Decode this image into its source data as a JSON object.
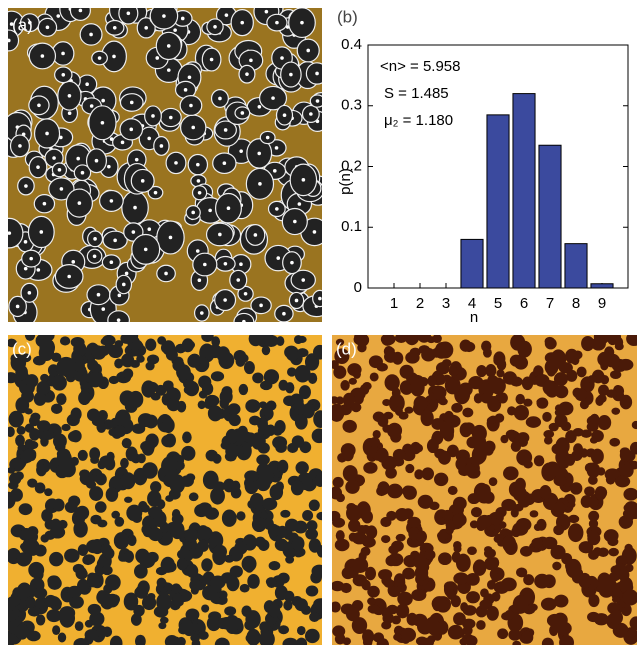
{
  "panel_labels": [
    "(a)",
    "(b)",
    "(c)",
    "(d)"
  ],
  "chart_data": {
    "type": "bar",
    "x": [
      1,
      2,
      3,
      4,
      5,
      6,
      7,
      8,
      9
    ],
    "values": [
      0,
      0,
      0,
      0.08,
      0.285,
      0.32,
      0.235,
      0.073,
      0.007
    ],
    "color": "#3b4a9e",
    "xlabel": "n",
    "ylabel": "p(n)",
    "xlim": [
      0,
      10
    ],
    "xticks": [
      1,
      2,
      3,
      4,
      5,
      6,
      7,
      8,
      9
    ],
    "ylim": [
      0,
      0.4
    ],
    "yticks": [
      0,
      0.1,
      0.2,
      0.3,
      0.4
    ],
    "annotations": [
      "<n> = 5.958",
      "S = 1.485",
      "μ₂ = 1.180"
    ]
  }
}
